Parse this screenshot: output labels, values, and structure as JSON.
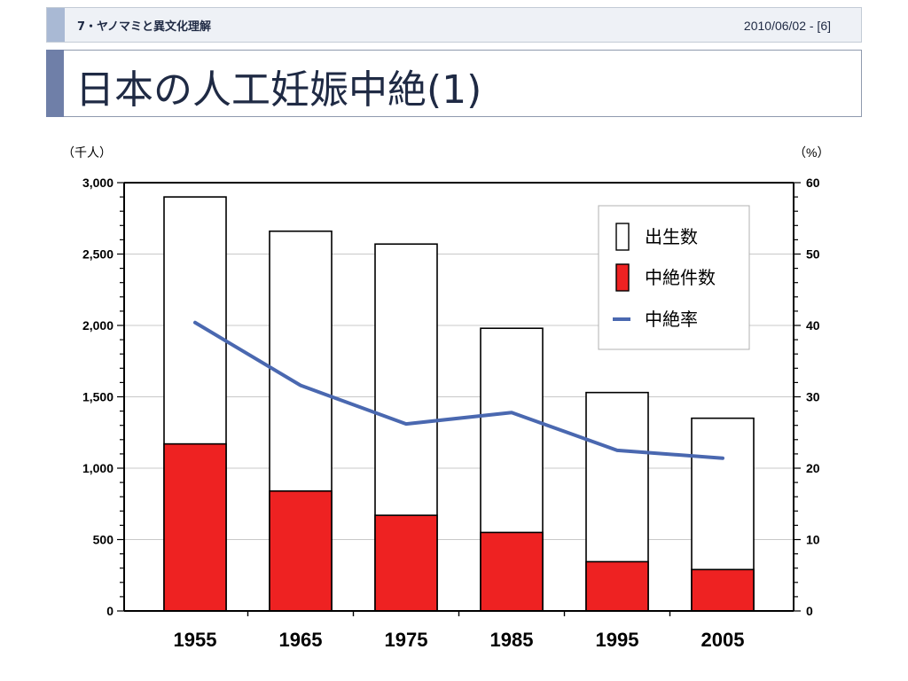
{
  "header": {
    "section": "7・ヤノマミと異文化理解",
    "date": "2010/06/02 - [6]"
  },
  "title": "日本の人工妊娠中絶(1)",
  "colors": {
    "births": "#ffffff",
    "abortions": "#ee2222",
    "rate": "#4a68b0",
    "axis": "#000000"
  },
  "chart_data": {
    "type": "bar",
    "title": "",
    "xlabel": "",
    "ylabel_left": "（千人）",
    "ylabel_right": "（%）",
    "categories": [
      "1955",
      "1965",
      "1975",
      "1985",
      "1995",
      "2005"
    ],
    "ylim_left": [
      0,
      3000
    ],
    "ylim_right": [
      0,
      60
    ],
    "yticks_left": [
      "0",
      "500",
      "1,000",
      "1,500",
      "2,000",
      "2,500",
      "3,000"
    ],
    "yticks_right": [
      "0",
      "10",
      "20",
      "30",
      "40",
      "50",
      "60"
    ],
    "grid": true,
    "legend_position": "top-right",
    "series": [
      {
        "name": "出生数",
        "kind": "bar",
        "axis": "left",
        "values": [
          2900,
          2660,
          2570,
          1980,
          1530,
          1350
        ]
      },
      {
        "name": "中絶件数",
        "kind": "bar-overlay",
        "axis": "left",
        "values": [
          1170,
          840,
          670,
          550,
          345,
          290
        ]
      },
      {
        "name": "中絶率",
        "kind": "line",
        "axis": "right",
        "values": [
          40.4,
          31.6,
          26.2,
          27.8,
          22.5,
          21.4
        ]
      }
    ]
  }
}
